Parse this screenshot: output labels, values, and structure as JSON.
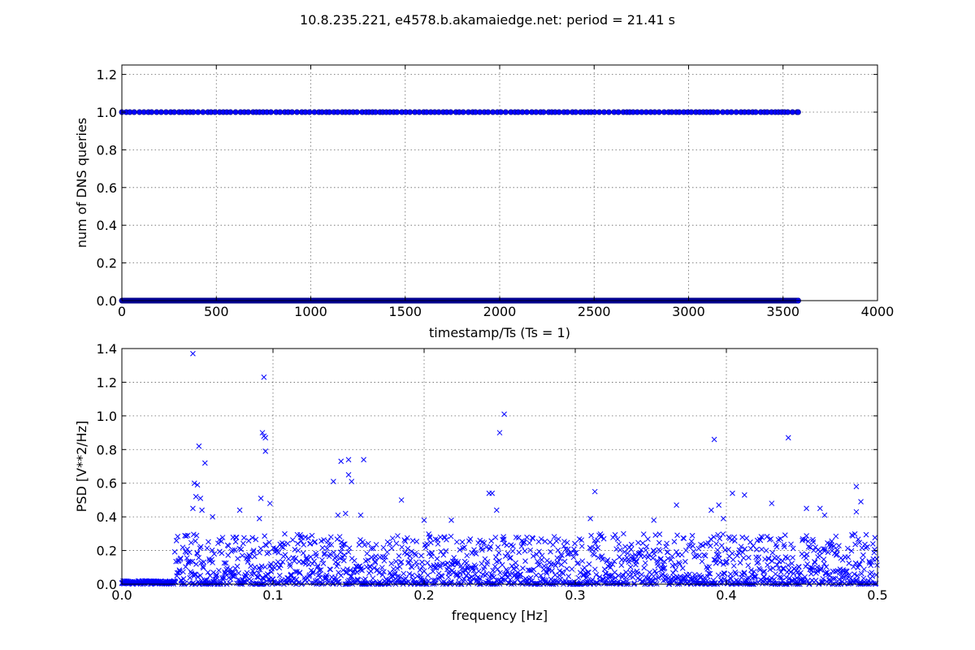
{
  "figure": {
    "title": "10.8.235.221, e4578.b.akamaiedge.net: period = 21.41 s"
  },
  "chart_data": [
    {
      "type": "scatter",
      "xlabel": "timestamp/Ts (Ts = 1)",
      "ylabel": "num of DNS queries",
      "xlim": [
        0,
        4000
      ],
      "ylim": [
        0,
        1.25
      ],
      "xticks": [
        0,
        500,
        1000,
        1500,
        2000,
        2500,
        3000,
        3500,
        4000
      ],
      "xtick_labels": [
        "0",
        "500",
        "1000",
        "1500",
        "2000",
        "2500",
        "3000",
        "3500",
        "4000"
      ],
      "yticks": [
        0.0,
        0.2,
        0.4,
        0.6,
        0.8,
        1.0,
        1.2
      ],
      "ytick_labels": [
        "0.0",
        "0.2",
        "0.4",
        "0.6",
        "0.8",
        "1.0",
        "1.2"
      ],
      "grid": true,
      "marker": "circle",
      "color": "#0000ff",
      "series": [
        {
          "value": 1.0,
          "x_range": [
            0,
            3580
          ],
          "mean_spacing": 21.41,
          "description": "query events"
        },
        {
          "value": 0.0,
          "x_range": [
            0,
            3580
          ],
          "description": "no-query samples"
        }
      ]
    },
    {
      "type": "scatter",
      "xlabel": "frequency [Hz]",
      "ylabel": "PSD [V**2/Hz]",
      "xlim": [
        0,
        0.5
      ],
      "ylim": [
        0,
        1.4
      ],
      "xticks": [
        0.0,
        0.1,
        0.2,
        0.3,
        0.4,
        0.5
      ],
      "xtick_labels": [
        "0.0",
        "0.1",
        "0.2",
        "0.3",
        "0.4",
        "0.5"
      ],
      "yticks": [
        0.0,
        0.2,
        0.4,
        0.6,
        0.8,
        1.0,
        1.2,
        1.4
      ],
      "ytick_labels": [
        "0.0",
        "0.2",
        "0.4",
        "0.6",
        "0.8",
        "1.0",
        "1.2",
        "1.4"
      ],
      "grid": true,
      "marker": "x",
      "color": "#0000ff",
      "peaks": [
        [
          0.047,
          1.37
        ],
        [
          0.094,
          1.23
        ],
        [
          0.253,
          1.01
        ],
        [
          0.25,
          0.9
        ],
        [
          0.093,
          0.9
        ],
        [
          0.094,
          0.88
        ],
        [
          0.095,
          0.87
        ],
        [
          0.392,
          0.86
        ],
        [
          0.441,
          0.87
        ],
        [
          0.051,
          0.82
        ],
        [
          0.095,
          0.79
        ],
        [
          0.16,
          0.74
        ],
        [
          0.145,
          0.73
        ],
        [
          0.15,
          0.74
        ],
        [
          0.055,
          0.72
        ],
        [
          0.15,
          0.65
        ],
        [
          0.152,
          0.61
        ],
        [
          0.14,
          0.61
        ],
        [
          0.048,
          0.6
        ],
        [
          0.05,
          0.59
        ],
        [
          0.486,
          0.58
        ],
        [
          0.313,
          0.55
        ],
        [
          0.404,
          0.54
        ],
        [
          0.243,
          0.54
        ],
        [
          0.245,
          0.54
        ],
        [
          0.412,
          0.53
        ],
        [
          0.049,
          0.52
        ],
        [
          0.052,
          0.51
        ],
        [
          0.092,
          0.51
        ],
        [
          0.185,
          0.5
        ],
        [
          0.489,
          0.49
        ],
        [
          0.098,
          0.48
        ],
        [
          0.43,
          0.48
        ],
        [
          0.367,
          0.47
        ],
        [
          0.395,
          0.47
        ],
        [
          0.047,
          0.45
        ],
        [
          0.053,
          0.44
        ],
        [
          0.078,
          0.44
        ],
        [
          0.248,
          0.44
        ],
        [
          0.39,
          0.44
        ],
        [
          0.453,
          0.45
        ],
        [
          0.462,
          0.45
        ],
        [
          0.486,
          0.43
        ],
        [
          0.158,
          0.41
        ],
        [
          0.148,
          0.42
        ],
        [
          0.465,
          0.41
        ],
        [
          0.143,
          0.41
        ],
        [
          0.06,
          0.4
        ],
        [
          0.091,
          0.39
        ],
        [
          0.2,
          0.38
        ],
        [
          0.218,
          0.38
        ],
        [
          0.398,
          0.39
        ],
        [
          0.352,
          0.38
        ],
        [
          0.31,
          0.39
        ]
      ],
      "scatter_level": {
        "x_range": [
          0,
          0.5
        ],
        "typical_max": 0.3,
        "note": "dense low-level points"
      }
    }
  ]
}
